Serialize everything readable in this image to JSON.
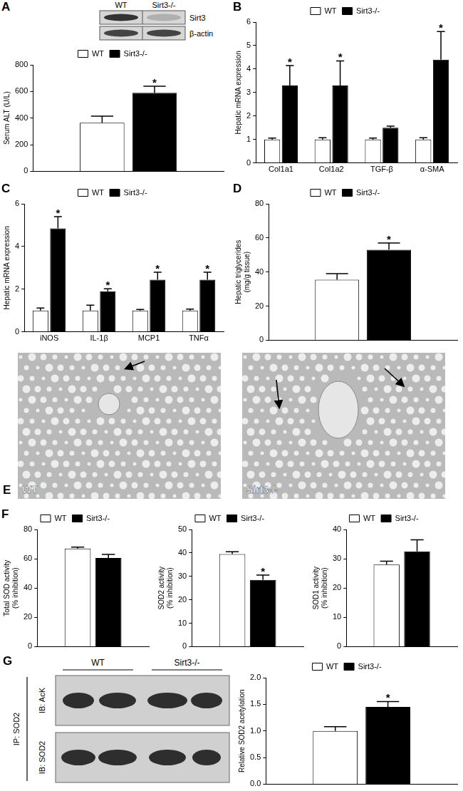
{
  "chart_data": [
    {
      "panel": "A",
      "type": "bar",
      "categories": [
        null
      ],
      "y_label": "Serum ALT (U/L)",
      "ylim": [
        0,
        800
      ],
      "yticks": [
        0,
        200,
        400,
        600,
        800
      ],
      "grid": false,
      "legend": "top",
      "tick_labels": "y",
      "series": [
        {
          "name": "WT",
          "color": "#ffffff",
          "values": [
            365
          ],
          "errors": [
            50
          ],
          "annotations": [
            null
          ]
        },
        {
          "name": "Sirt3-/-",
          "color": "#000000",
          "values": [
            590
          ],
          "errors": [
            50
          ],
          "annotations": [
            "*"
          ]
        }
      ],
      "inset": {
        "lanes": [
          "WT",
          "Sirt3-/-"
        ],
        "rows": [
          "Sirt3",
          "β-actin"
        ]
      }
    },
    {
      "panel": "B",
      "type": "bar",
      "categories": [
        "Col1a1",
        "Col1a2",
        "TGF-β",
        "α-SMA"
      ],
      "y_label": "Hepatic mRNA expression",
      "ylim": [
        0,
        6
      ],
      "yticks": [
        0,
        1,
        2,
        3,
        4,
        5,
        6
      ],
      "grid": false,
      "legend": "top",
      "series": [
        {
          "name": "WT",
          "color": "#ffffff",
          "values": [
            1,
            1,
            1,
            1
          ],
          "errors": [
            0.06,
            0.08,
            0.06,
            0.08
          ],
          "annotations": [
            null,
            null,
            null,
            null
          ]
        },
        {
          "name": "Sirt3-/-",
          "color": "#000000",
          "values": [
            3.3,
            3.3,
            1.5,
            4.4
          ],
          "errors": [
            0.85,
            1.05,
            0.07,
            1.2
          ],
          "annotations": [
            "*",
            "*",
            null,
            "*"
          ]
        }
      ]
    },
    {
      "panel": "C",
      "type": "bar",
      "categories": [
        "iNOS",
        "IL-1β",
        "MCP1",
        "TNFα"
      ],
      "y_label": "Hepatic mRNA expression",
      "ylim": [
        0,
        6
      ],
      "yticks": [
        0,
        2,
        4,
        6
      ],
      "grid": false,
      "legend": "top",
      "series": [
        {
          "name": "WT",
          "color": "#ffffff",
          "values": [
            1,
            1,
            1,
            1
          ],
          "errors": [
            0.12,
            0.25,
            0.05,
            0.07
          ],
          "annotations": [
            null,
            null,
            null,
            null
          ]
        },
        {
          "name": "Sirt3-/-",
          "color": "#000000",
          "values": [
            4.85,
            1.9,
            2.45,
            2.45
          ],
          "errors": [
            0.55,
            0.12,
            0.35,
            0.35
          ],
          "annotations": [
            "*",
            "*",
            "*",
            "*"
          ]
        }
      ]
    },
    {
      "panel": "D",
      "type": "bar",
      "categories": [
        null
      ],
      "y_label": "Hepatic triglycerides (mg/g tissue)",
      "ylim": [
        0,
        80
      ],
      "yticks": [
        0,
        20,
        40,
        60,
        80
      ],
      "grid": false,
      "legend": "top",
      "tick_labels": "y",
      "series": [
        {
          "name": "WT",
          "color": "#ffffff",
          "values": [
            35.5
          ],
          "errors": [
            3.5
          ],
          "annotations": [
            null
          ]
        },
        {
          "name": "Sirt3-/-",
          "color": "#000000",
          "values": [
            53
          ],
          "errors": [
            4
          ],
          "annotations": [
            "*"
          ]
        }
      ]
    },
    {
      "panel": "F",
      "type": "bar",
      "categories": [
        null
      ],
      "y_label": "Total SOD activity (% inhibition)",
      "ylim": [
        0,
        80
      ],
      "yticks": [
        0,
        20,
        40,
        60,
        80
      ],
      "grid": false,
      "legend": "top",
      "tick_labels": "y",
      "series": [
        {
          "name": "WT",
          "color": "#ffffff",
          "values": [
            67
          ],
          "errors": [
            1
          ],
          "annotations": [
            null
          ]
        },
        {
          "name": "Sirt3-/-",
          "color": "#000000",
          "values": [
            60.5
          ],
          "errors": [
            2.5
          ],
          "annotations": [
            null
          ]
        }
      ]
    },
    {
      "type": "bar",
      "categories": [
        null
      ],
      "y_label": "SOD2 activity (% inhibition)",
      "ylim": [
        0,
        50
      ],
      "yticks": [
        0,
        10,
        20,
        30,
        40,
        50
      ],
      "grid": false,
      "legend": "top",
      "tick_labels": "y",
      "series": [
        {
          "name": "WT",
          "color": "#ffffff",
          "values": [
            39.5
          ],
          "errors": [
            1
          ],
          "annotations": [
            null
          ]
        },
        {
          "name": "Sirt3-/-",
          "color": "#000000",
          "values": [
            28.5
          ],
          "errors": [
            2
          ],
          "annotations": [
            "*"
          ]
        }
      ]
    },
    {
      "type": "bar",
      "categories": [
        null
      ],
      "y_label": "SOD1 activity (% inhibition)",
      "ylim": [
        0,
        40
      ],
      "yticks": [
        0,
        10,
        20,
        30,
        40
      ],
      "grid": false,
      "legend": "top",
      "tick_labels": "y",
      "series": [
        {
          "name": "WT",
          "color": "#ffffff",
          "values": [
            28
          ],
          "errors": [
            1.2
          ],
          "annotations": [
            null
          ]
        },
        {
          "name": "Sirt3-/-",
          "color": "#000000",
          "values": [
            32.5
          ],
          "errors": [
            4
          ],
          "annotations": [
            null
          ]
        }
      ]
    },
    {
      "type": "bar",
      "categories": [
        null
      ],
      "y_label": "Relative SOD2 acetylation",
      "ylim": [
        0,
        2
      ],
      "yticks": [
        {
          "value": 0,
          "label": "0.0"
        },
        0.5,
        {
          "value": 1,
          "label": "1.0"
        },
        1.5,
        {
          "value": 2,
          "label": "2.0"
        }
      ],
      "grid": false,
      "legend": "top",
      "tick_labels": "y",
      "series": [
        {
          "name": "WT",
          "color": "#ffffff",
          "values": [
            1.0
          ],
          "errors": [
            0.08
          ],
          "annotations": [
            null
          ]
        },
        {
          "name": "Sirt3-/-",
          "color": "#000000",
          "values": [
            1.45
          ],
          "errors": [
            0.1
          ],
          "annotations": [
            "*"
          ]
        }
      ]
    }
  ],
  "images": {
    "panel": "E",
    "labels": [
      "WT",
      "Sirt3-/-"
    ]
  },
  "blot": {
    "panel": "G",
    "lanes": [
      "WT",
      "Sirt3-/-"
    ],
    "ip": "IP: SOD2",
    "rows": [
      "IB: AcK",
      "IB: SOD2"
    ]
  }
}
